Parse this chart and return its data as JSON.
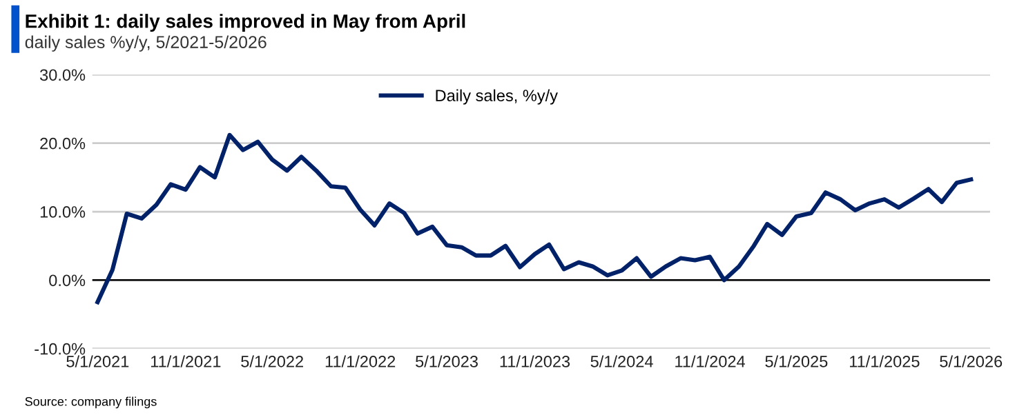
{
  "chart_data": {
    "type": "line",
    "title": "Exhibit 1: daily sales improved in May from April",
    "subtitle": "daily sales %y/y, 5/2021-5/2026",
    "annotations": [
      "Source: company filings"
    ],
    "x": [
      "2021-05",
      "2021-06",
      "2021-07",
      "2021-08",
      "2021-09",
      "2021-10",
      "2021-11",
      "2021-12",
      "2022-01",
      "2022-02",
      "2022-03",
      "2022-04",
      "2022-05",
      "2022-06",
      "2022-07",
      "2022-08",
      "2022-09",
      "2022-10",
      "2022-11",
      "2022-12",
      "2023-01",
      "2023-02",
      "2023-03",
      "2023-04",
      "2023-05",
      "2023-06",
      "2023-07",
      "2023-08",
      "2023-09",
      "2023-10",
      "2023-11",
      "2023-12",
      "2024-01",
      "2024-02",
      "2024-03",
      "2024-04",
      "2024-05",
      "2024-06",
      "2024-07",
      "2024-08",
      "2024-09",
      "2024-10",
      "2024-11",
      "2024-12",
      "2025-01",
      "2025-02",
      "2025-03",
      "2025-04",
      "2025-05",
      "2025-06",
      "2025-07",
      "2025-08",
      "2025-09",
      "2025-10",
      "2025-11",
      "2025-12",
      "2026-01",
      "2026-02",
      "2026-03",
      "2026-04",
      "2026-05"
    ],
    "series": [
      {
        "name": "Daily sales, %y/y",
        "color": "#012169",
        "values": [
          -3.2,
          1.5,
          9.7,
          9.0,
          11.0,
          14.0,
          13.2,
          16.5,
          15.0,
          21.2,
          19.0,
          20.2,
          17.6,
          16.0,
          18.0,
          16.0,
          13.7,
          13.5,
          10.3,
          8.0,
          11.2,
          9.8,
          6.8,
          7.8,
          5.1,
          4.8,
          3.6,
          3.6,
          5.0,
          1.9,
          3.8,
          5.2,
          1.6,
          2.6,
          2.0,
          0.7,
          1.4,
          3.2,
          0.5,
          2.0,
          3.2,
          2.9,
          3.4,
          0.0,
          2.0,
          5.0,
          8.2,
          6.6,
          9.3,
          9.8,
          12.8,
          11.8,
          10.2,
          11.2,
          11.8,
          10.6,
          11.9,
          13.3,
          11.4,
          14.2,
          14.7
        ]
      }
    ],
    "xlim": [
      "2021-04-20",
      "2026-06-10"
    ],
    "xticks": [
      {
        "value": "2021-05-01",
        "label": "5/1/2021"
      },
      {
        "value": "2021-11-01",
        "label": "11/1/2021"
      },
      {
        "value": "2022-05-01",
        "label": "5/1/2022"
      },
      {
        "value": "2022-11-01",
        "label": "11/1/2022"
      },
      {
        "value": "2023-05-01",
        "label": "5/1/2023"
      },
      {
        "value": "2023-11-01",
        "label": "11/1/2023"
      },
      {
        "value": "2024-05-01",
        "label": "5/1/2024"
      },
      {
        "value": "2024-11-01",
        "label": "11/1/2024"
      },
      {
        "value": "2025-05-01",
        "label": "5/1/2025"
      },
      {
        "value": "2025-11-01",
        "label": "11/1/2025"
      },
      {
        "value": "2026-05-01",
        "label": "5/1/2026"
      }
    ],
    "ylim": [
      -10,
      30
    ],
    "yticks": [
      {
        "value": -10,
        "label": "-10.0%"
      },
      {
        "value": 0,
        "label": "0.0%"
      },
      {
        "value": 10,
        "label": "10.0%"
      },
      {
        "value": 20,
        "label": "20.0%"
      },
      {
        "value": 30,
        "label": "30.0%"
      }
    ],
    "ref_lines": [
      {
        "axis": "y",
        "value": 0,
        "color": "#000000"
      }
    ],
    "grid": "y",
    "legend": "top",
    "marker": "none",
    "line_style": "solid"
  }
}
